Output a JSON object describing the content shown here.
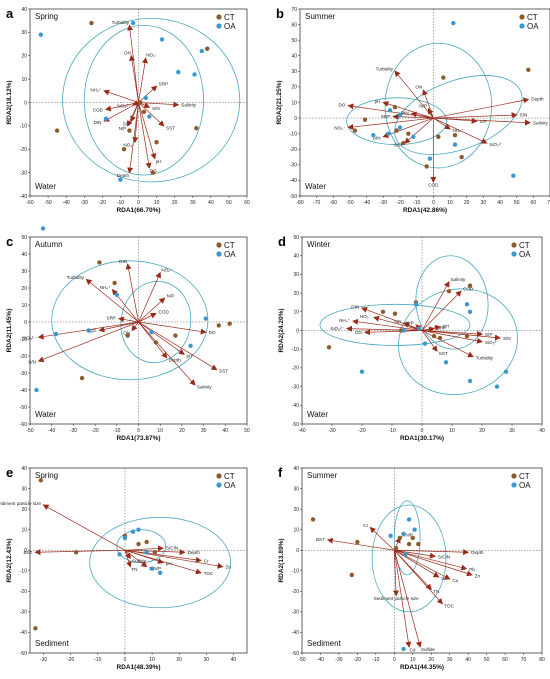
{
  "legend_names": [
    "CT",
    "OA"
  ],
  "colors": {
    "CT": "#8c5a2b",
    "OA": "#3a98cf",
    "arrow": "#9a2a1a",
    "ellipse": "#4aa8c0"
  },
  "chart_data": [
    {
      "type": "scatter",
      "panel": "a",
      "season": "Spring",
      "matrix": "Water",
      "xlabel": "RDA1(66.70%)",
      "ylabel": "RDA2(18.12%)",
      "xlim": [
        -60,
        60
      ],
      "ylim": [
        -40,
        40
      ],
      "xticks": [
        -60,
        -50,
        -40,
        -30,
        -20,
        -10,
        0,
        10,
        20,
        30,
        40,
        50,
        60
      ],
      "yticks": [
        -40,
        -30,
        -20,
        -10,
        0,
        10,
        20,
        30,
        40
      ],
      "ct_points": [
        [
          -26,
          34
        ],
        [
          -45,
          -12
        ],
        [
          -5,
          -12
        ],
        [
          1,
          0
        ],
        [
          3,
          -4
        ],
        [
          8,
          -30
        ],
        [
          10,
          -17
        ],
        [
          32,
          -11
        ],
        [
          38,
          23
        ],
        [
          -8,
          -20
        ]
      ],
      "oa_points": [
        [
          -54,
          29
        ],
        [
          -3,
          34
        ],
        [
          22,
          13
        ],
        [
          31,
          12
        ],
        [
          -18,
          -7
        ],
        [
          -10,
          -33
        ],
        [
          4,
          2
        ],
        [
          13,
          27
        ],
        [
          35,
          22
        ],
        [
          6,
          -6
        ]
      ],
      "vectors": [
        {
          "label": "Turbidity",
          "x": -5,
          "y": 33
        },
        {
          "label": "ON",
          "x": -4,
          "y": 20
        },
        {
          "label": "NO₂⁻",
          "x": 4,
          "y": 19
        },
        {
          "label": "SRP",
          "x": 10,
          "y": 7
        },
        {
          "label": "NH₄⁺",
          "x": -19,
          "y": 5
        },
        {
          "label": "SiO₃²⁻",
          "x": -3,
          "y": -1
        },
        {
          "label": "COD",
          "x": -18,
          "y": -3
        },
        {
          "label": "DIN",
          "x": -19,
          "y": -8
        },
        {
          "label": "S/N",
          "x": 6,
          "y": -2
        },
        {
          "label": "Salinity",
          "x": 22,
          "y": -1
        },
        {
          "label": "SST",
          "x": 14,
          "y": -10
        },
        {
          "label": "N/P",
          "x": -6,
          "y": -10
        },
        {
          "label": "S/P",
          "x": -4,
          "y": -8
        },
        {
          "label": "NO₃⁻",
          "x": -2,
          "y": -17
        },
        {
          "label": "pH",
          "x": 9,
          "y": -24
        },
        {
          "label": "DO",
          "x": 6,
          "y": -28
        },
        {
          "label": "Depth",
          "x": -5,
          "y": -30
        }
      ],
      "ellipses": [
        {
          "cx": 7,
          "cy": 1,
          "rx": 49,
          "ry": 35,
          "rot": 0
        },
        {
          "cx": 3,
          "cy": 1,
          "rx": 33,
          "ry": 32,
          "rot": 0
        }
      ]
    },
    {
      "type": "scatter",
      "panel": "b",
      "season": "Summer",
      "matrix": "Water",
      "xlabel": "RDA1(42.86%)",
      "ylabel": "RDA2(21.25%)",
      "xlim": [
        -80,
        70
      ],
      "ylim": [
        -50,
        70
      ],
      "xticks": [
        -80,
        -70,
        -60,
        -50,
        -40,
        -30,
        -20,
        -10,
        0,
        10,
        20,
        30,
        40,
        50,
        60,
        70
      ],
      "yticks": [
        -50,
        -40,
        -30,
        -20,
        -10,
        0,
        10,
        20,
        30,
        40,
        50,
        60,
        70
      ],
      "ct_points": [
        [
          6,
          26
        ],
        [
          57,
          31
        ],
        [
          -23,
          7
        ],
        [
          -41,
          -1
        ],
        [
          -47,
          -8
        ],
        [
          -22,
          -8
        ],
        [
          -15,
          -10
        ],
        [
          3,
          -12
        ],
        [
          13,
          -11
        ],
        [
          17,
          -25
        ],
        [
          -4,
          -31
        ],
        [
          -18,
          -16
        ]
      ],
      "oa_points": [
        [
          12,
          61
        ],
        [
          -20,
          2
        ],
        [
          -26,
          5
        ],
        [
          -27,
          -10
        ],
        [
          -36,
          -11
        ],
        [
          -12,
          -12
        ],
        [
          13,
          -17
        ],
        [
          48,
          -37
        ],
        [
          -2,
          -26
        ],
        [
          -20,
          -6
        ]
      ],
      "vectors": [
        {
          "label": "Turbidity",
          "x": -23,
          "y": 30
        },
        {
          "label": "ON",
          "x": -6,
          "y": 18
        },
        {
          "label": "N/P",
          "x": -3,
          "y": 6
        },
        {
          "label": "pH",
          "x": -30,
          "y": 10
        },
        {
          "label": "DO",
          "x": -51,
          "y": 8
        },
        {
          "label": "DIN",
          "x": -13,
          "y": 3
        },
        {
          "label": "SRP",
          "x": -24,
          "y": 1
        },
        {
          "label": "NO₂⁻",
          "x": -51,
          "y": -6
        },
        {
          "label": "NH₄⁺",
          "x": 10,
          "y": -7
        },
        {
          "label": "S/P",
          "x": 26,
          "y": -2
        },
        {
          "label": "Depth",
          "x": 57,
          "y": 12
        },
        {
          "label": "S/N",
          "x": 50,
          "y": 2
        },
        {
          "label": "Salinity",
          "x": 58,
          "y": -3
        },
        {
          "label": "SiO₃²⁻",
          "x": 32,
          "y": -16
        },
        {
          "label": "SST",
          "x": -17,
          "y": -16
        },
        {
          "label": "DIN",
          "x": -30,
          "y": -12
        },
        {
          "label": "COD",
          "x": 0,
          "y": -41
        }
      ],
      "ellipses": [
        {
          "cx": -22,
          "cy": -2,
          "rx": 30,
          "ry": 15,
          "rot": 0
        },
        {
          "cx": 3,
          "cy": 8,
          "rx": 32,
          "ry": 40,
          "rot": 0
        },
        {
          "cx": 15,
          "cy": 2,
          "rx": 40,
          "ry": 22,
          "rot": -20
        }
      ]
    },
    {
      "type": "scatter",
      "panel": "c",
      "season": "Autumn",
      "matrix": "Water",
      "xlabel": "RDA1(73.87%)",
      "ylabel": "RDA2(11.45%)",
      "xlim": [
        -50,
        50
      ],
      "ylim": [
        -60,
        50
      ],
      "xticks": [
        -50,
        -40,
        -30,
        -20,
        -10,
        0,
        10,
        20,
        30,
        40,
        50
      ],
      "yticks": [
        -60,
        -50,
        -40,
        -30,
        -20,
        -10,
        0,
        10,
        20,
        30,
        40,
        50
      ],
      "ct_points": [
        [
          -18,
          35
        ],
        [
          -11,
          23
        ],
        [
          37,
          -2
        ],
        [
          42,
          -1
        ],
        [
          -5,
          -8
        ],
        [
          -26,
          -33
        ],
        [
          8,
          -12
        ],
        [
          17,
          -8
        ]
      ],
      "oa_points": [
        [
          -44,
          55
        ],
        [
          -10,
          16
        ],
        [
          -38,
          -7
        ],
        [
          -47,
          -40
        ],
        [
          31,
          2
        ],
        [
          6,
          -6
        ],
        [
          -23,
          -5
        ],
        [
          24,
          -14
        ]
      ],
      "vectors": [
        {
          "label": "DIN",
          "x": -5,
          "y": 34
        },
        {
          "label": "NO₂⁻",
          "x": 10,
          "y": 29
        },
        {
          "label": "Turbidity",
          "x": -24,
          "y": 25
        },
        {
          "label": "NH₄⁺",
          "x": -12,
          "y": 19
        },
        {
          "label": "N/P",
          "x": 12,
          "y": 14
        },
        {
          "label": "COD",
          "x": 8,
          "y": 5
        },
        {
          "label": "SRP",
          "x": -9,
          "y": 2
        },
        {
          "label": "SiO₃²⁻",
          "x": -46,
          "y": -9
        },
        {
          "label": "S/P",
          "x": -18,
          "y": -5
        },
        {
          "label": "ON",
          "x": -3,
          "y": -5
        },
        {
          "label": "DO",
          "x": 31,
          "y": -6
        },
        {
          "label": "pH",
          "x": 21,
          "y": -19
        },
        {
          "label": "Depth",
          "x": 13,
          "y": -21
        },
        {
          "label": "S/N",
          "x": -46,
          "y": -23
        },
        {
          "label": "SST",
          "x": 36,
          "y": -28
        },
        {
          "label": "Salinity",
          "x": 26,
          "y": -37
        }
      ],
      "ellipses": [
        {
          "cx": -4,
          "cy": 1,
          "rx": 36,
          "ry": 35,
          "rot": 0
        },
        {
          "cx": 8,
          "cy": 0,
          "rx": 16,
          "ry": 24,
          "rot": 10
        }
      ]
    },
    {
      "type": "scatter",
      "panel": "d",
      "season": "Winter",
      "matrix": "Water",
      "xlabel": "RDA1(30.17%)",
      "ylabel": "RDA2(24.20%)",
      "xlim": [
        -40,
        40
      ],
      "ylim": [
        -50,
        50
      ],
      "xticks": [
        -40,
        -30,
        -20,
        -10,
        0,
        10,
        20,
        30,
        40
      ],
      "yticks": [
        -50,
        -40,
        -30,
        -20,
        -10,
        0,
        10,
        20,
        30,
        40,
        50
      ],
      "ct_points": [
        [
          -2,
          15
        ],
        [
          9,
          21
        ],
        [
          -13,
          10
        ],
        [
          -9,
          9
        ],
        [
          16,
          24
        ],
        [
          -31,
          -9
        ],
        [
          -7,
          0
        ],
        [
          4,
          -3
        ],
        [
          6,
          -4
        ],
        [
          15,
          -3
        ]
      ],
      "oa_points": [
        [
          -2,
          14
        ],
        [
          15,
          14
        ],
        [
          16,
          10
        ],
        [
          -20,
          -22
        ],
        [
          -6,
          0
        ],
        [
          -1,
          1
        ],
        [
          1,
          -7
        ],
        [
          16,
          -27
        ],
        [
          25,
          -30
        ],
        [
          28,
          -22
        ],
        [
          8,
          -17
        ]
      ],
      "vectors": [
        {
          "label": "Salinity",
          "x": 9,
          "y": 26
        },
        {
          "label": "COD",
          "x": 13,
          "y": 21
        },
        {
          "label": "DIN",
          "x": -20,
          "y": 12
        },
        {
          "label": "NO₂⁻",
          "x": -16,
          "y": 7
        },
        {
          "label": "NH₄⁺",
          "x": -23,
          "y": 5
        },
        {
          "label": "DO",
          "x": -19,
          "y": -1
        },
        {
          "label": "S/P",
          "x": -6,
          "y": 4
        },
        {
          "label": "N/P",
          "x": -2,
          "y": 3
        },
        {
          "label": "SiO₃²⁻",
          "x": -25,
          "y": 1
        },
        {
          "label": "SRP",
          "x": 4,
          "y": 1
        },
        {
          "label": "pH",
          "x": 6,
          "y": 2
        },
        {
          "label": "S/P",
          "x": 20,
          "y": -2
        },
        {
          "label": "SiO₃²⁻",
          "x": 20,
          "y": -6
        },
        {
          "label": "S/N",
          "x": 26,
          "y": -4
        },
        {
          "label": "SST",
          "x": 5,
          "y": -11
        },
        {
          "label": "Turbidity",
          "x": 17,
          "y": -14
        }
      ],
      "ellipses": [
        {
          "cx": -9,
          "cy": 3,
          "rx": 25,
          "ry": 11,
          "rot": 0
        },
        {
          "cx": 12,
          "cy": -6,
          "rx": 20,
          "ry": 28,
          "rot": -15
        },
        {
          "cx": 10,
          "cy": 15,
          "rx": 12,
          "ry": 25,
          "rot": -5
        }
      ]
    },
    {
      "type": "scatter",
      "panel": "e",
      "season": "Spring",
      "matrix": "Sediment",
      "xlabel": "RDA1(48.39%)",
      "ylabel": "RDA2(12.43%)",
      "xlim": [
        -35,
        45
      ],
      "ylim": [
        -50,
        40
      ],
      "xticks": [
        -30,
        -20,
        -10,
        0,
        10,
        20,
        30,
        40
      ],
      "yticks": [
        -50,
        -40,
        -30,
        -20,
        -10,
        0,
        10,
        20,
        30,
        40
      ],
      "ct_points": [
        [
          -31,
          34
        ],
        [
          -18,
          -1
        ],
        [
          -33,
          -38
        ],
        [
          0,
          7
        ],
        [
          5,
          3
        ],
        [
          11,
          -1
        ],
        [
          8,
          4
        ]
      ],
      "oa_points": [
        [
          0,
          6
        ],
        [
          3,
          9
        ],
        [
          5,
          10
        ],
        [
          8,
          -1
        ],
        [
          10,
          -9
        ],
        [
          13,
          -11
        ],
        [
          -2,
          -2
        ]
      ],
      "vectors": [
        {
          "label": "Sediment particle size",
          "x": -30,
          "y": 22
        },
        {
          "label": "BST",
          "x": -33,
          "y": -1
        },
        {
          "label": "S/C/N",
          "x": 14,
          "y": 1
        },
        {
          "label": "Depth",
          "x": 22,
          "y": -1
        },
        {
          "label": "Sulfide",
          "x": 2,
          "y": -4
        },
        {
          "label": "pH",
          "x": 14,
          "y": -6
        },
        {
          "label": "Cr",
          "x": 28,
          "y": -5
        },
        {
          "label": "Zn",
          "x": 36,
          "y": -8
        },
        {
          "label": "TOC",
          "x": 28,
          "y": -11
        },
        {
          "label": "TN",
          "x": 2,
          "y": -8
        },
        {
          "label": "S/N/P",
          "x": 8,
          "y": -8
        }
      ],
      "ellipses": [
        {
          "cx": 13,
          "cy": -6,
          "rx": 26,
          "ry": 22,
          "rot": 0
        },
        {
          "cx": 6,
          "cy": 2,
          "rx": 9,
          "ry": 8,
          "rot": 0
        }
      ]
    },
    {
      "type": "scatter",
      "panel": "f",
      "season": "Summer",
      "matrix": "Sediment",
      "xlabel": "RDA1(44.35%)",
      "ylabel": "RDA2(13.89%)",
      "xlim": [
        -50,
        80
      ],
      "ylim": [
        -50,
        40
      ],
      "xticks": [
        -50,
        -40,
        -30,
        -20,
        -10,
        0,
        10,
        20,
        30,
        40,
        50,
        60,
        70,
        80
      ],
      "yticks": [
        -50,
        -40,
        -30,
        -20,
        -10,
        0,
        10,
        20,
        30,
        40
      ],
      "ct_points": [
        [
          -44,
          15
        ],
        [
          -20,
          4
        ],
        [
          -23,
          -12
        ],
        [
          8,
          3
        ],
        [
          3,
          6
        ],
        [
          10,
          6
        ],
        [
          13,
          3
        ],
        [
          1,
          1
        ]
      ],
      "oa_points": [
        [
          5,
          8
        ],
        [
          8,
          15
        ],
        [
          11,
          10
        ],
        [
          -2,
          7
        ],
        [
          6,
          -2
        ],
        [
          5,
          -48
        ]
      ],
      "vectors": [
        {
          "label": "Cr",
          "x": -13,
          "y": 11
        },
        {
          "label": "BST",
          "x": -36,
          "y": 5
        },
        {
          "label": "S/N/P",
          "x": 3,
          "y": 6
        },
        {
          "label": "S/C/N",
          "x": 22,
          "y": -3
        },
        {
          "label": "Depth",
          "x": 40,
          "y": -1
        },
        {
          "label": "Pb",
          "x": 39,
          "y": -9
        },
        {
          "label": "S/P",
          "x": 24,
          "y": -13
        },
        {
          "label": "Cu",
          "x": 30,
          "y": -14
        },
        {
          "label": "Zn",
          "x": 42,
          "y": -12
        },
        {
          "label": "TN",
          "x": 20,
          "y": -19
        },
        {
          "label": "TOC",
          "x": 26,
          "y": -26
        },
        {
          "label": "Sediment particle size",
          "x": 1,
          "y": -22
        },
        {
          "label": "Cd",
          "x": 8,
          "y": -47
        },
        {
          "label": "Sulfide",
          "x": 14,
          "y": -47
        }
      ],
      "ellipses": [
        {
          "cx": 8,
          "cy": -4,
          "rx": 20,
          "ry": 26,
          "rot": 0
        },
        {
          "cx": 7,
          "cy": 6,
          "rx": 7,
          "ry": 18,
          "rot": 0
        }
      ]
    }
  ]
}
